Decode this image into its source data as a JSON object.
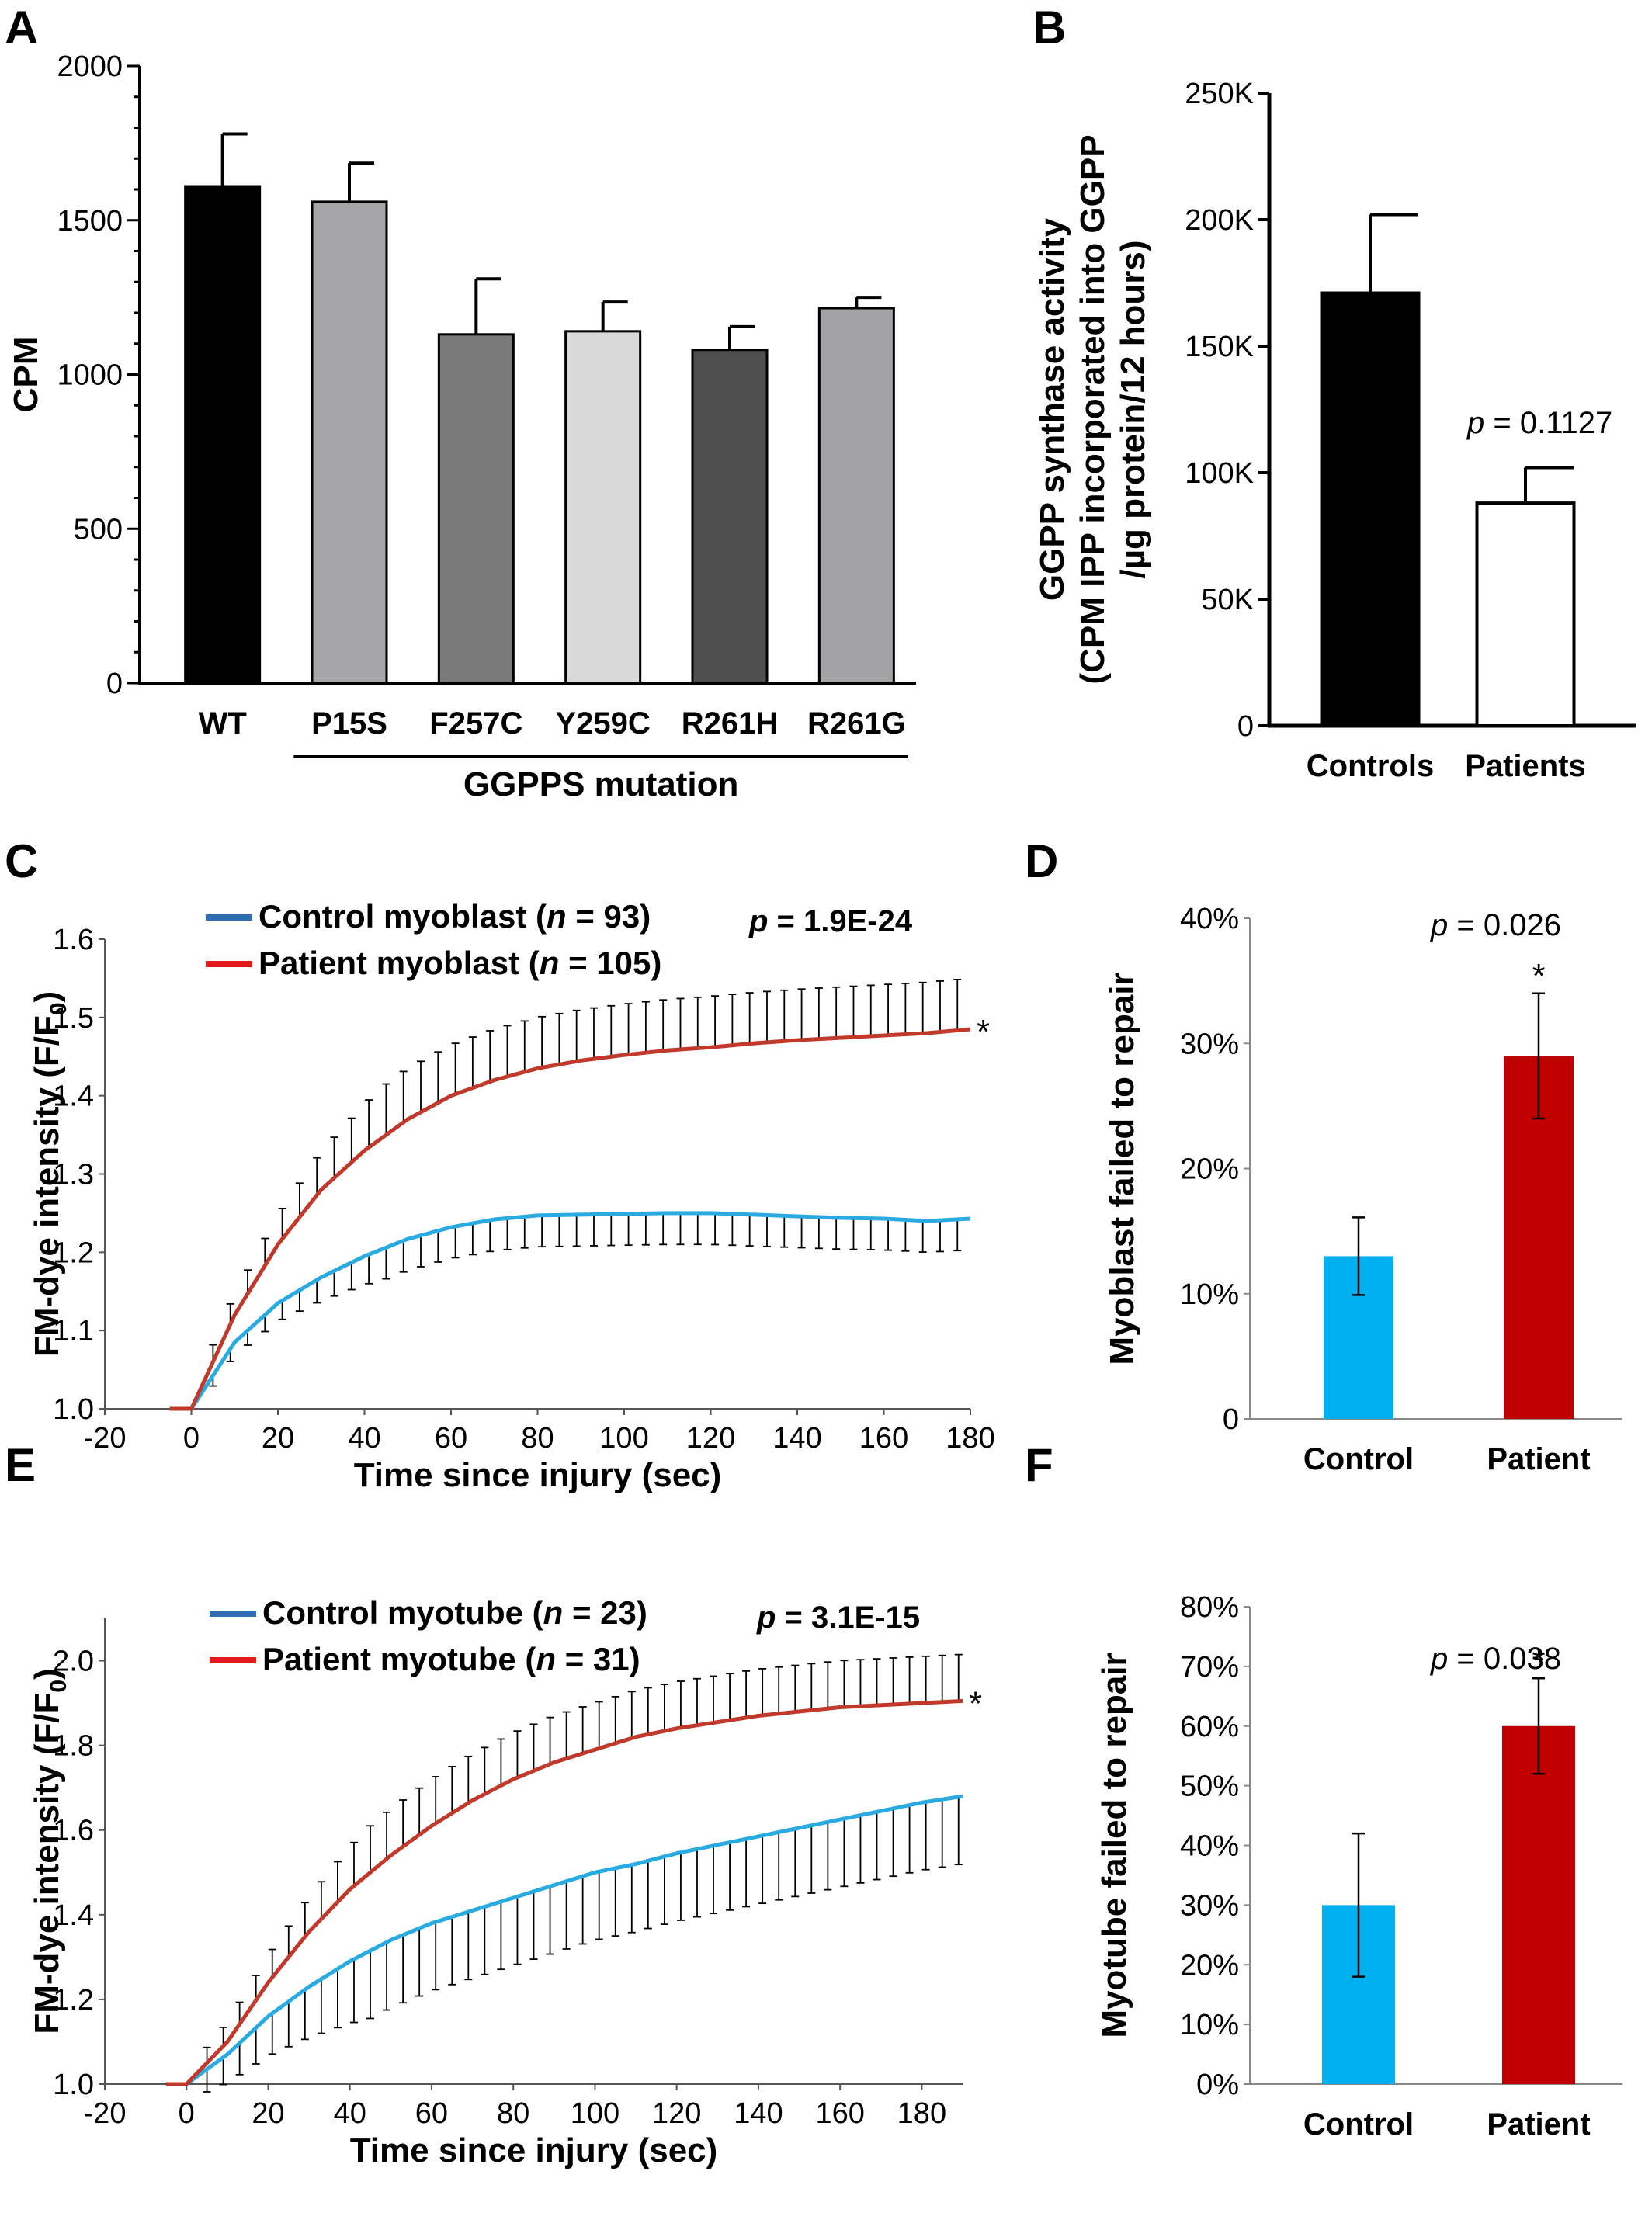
{
  "chart_data": [
    {
      "panel": "A",
      "type": "bar",
      "ylabel": "CPM",
      "xlabel": "GGPPS mutation",
      "ylim": [
        0,
        2000
      ],
      "yticks": [
        0,
        500,
        1000,
        1500,
        2000
      ],
      "categories": [
        "WT",
        "P15S",
        "F257C",
        "Y259C",
        "R261H",
        "R261G"
      ],
      "values": [
        1610,
        1560,
        1130,
        1140,
        1080,
        1215
      ],
      "errors": [
        170,
        125,
        180,
        95,
        75,
        35
      ],
      "colors": [
        "#000000",
        "#a6a6a8",
        "#7a7a7a",
        "#d9d9d9",
        "#4f4f4f",
        "#a3a3a6"
      ]
    },
    {
      "panel": "B",
      "type": "bar",
      "ylabel_lines": [
        "GGPP synthase activity",
        "(CPM IPP incorporated into GGPP",
        "/µg protein/12 hours)"
      ],
      "ylim": [
        0,
        250000
      ],
      "yticks": [
        0,
        50000,
        100000,
        150000,
        200000,
        250000
      ],
      "ytick_labels": [
        "0",
        "50K",
        "100K",
        "150K",
        "200K",
        "250K"
      ],
      "categories": [
        "Controls",
        "Patients"
      ],
      "values": [
        171000,
        88000
      ],
      "errors": [
        31000,
        14000
      ],
      "colors": [
        "#000000",
        "#ffffff"
      ],
      "annotation": {
        "italic": "p",
        "text": " = 0.1127"
      }
    },
    {
      "panel": "C",
      "type": "line",
      "xlabel": "Time since injury (sec)",
      "ylabel": "FM-dye intensity (F/F",
      "ylabel_sub": "0",
      "ylabel_end": ")",
      "xlim": [
        -20,
        180
      ],
      "ylim": [
        1.0,
        1.6
      ],
      "xticks": [
        -20,
        0,
        20,
        40,
        60,
        80,
        100,
        120,
        140,
        160,
        180
      ],
      "yticks": [
        "1.0",
        "1.1",
        "1.2",
        "1.3",
        "1.4",
        "1.5",
        "1.6"
      ],
      "series": [
        {
          "name_pre": "Control myoblast (",
          "name_n": "n",
          "name_post": " = 93)",
          "color": "#29abe2",
          "legend_color": "#2e6db4",
          "x": [
            -5,
            0,
            10,
            20,
            30,
            40,
            50,
            60,
            70,
            80,
            90,
            100,
            110,
            120,
            130,
            140,
            150,
            160,
            170,
            180
          ],
          "y": [
            1.0,
            1.0,
            1.085,
            1.135,
            1.168,
            1.195,
            1.217,
            1.232,
            1.242,
            1.247,
            1.248,
            1.249,
            1.25,
            1.25,
            1.248,
            1.246,
            1.244,
            1.243,
            1.24,
            1.243
          ],
          "err": 0.04
        },
        {
          "name_pre": "Patient myoblast (",
          "name_n": "n",
          "name_post": " = 105)",
          "color": "#c0392b",
          "legend_color": "#e31a1c",
          "x": [
            -5,
            0,
            10,
            20,
            30,
            40,
            50,
            60,
            70,
            80,
            90,
            100,
            110,
            120,
            130,
            140,
            150,
            160,
            170,
            180
          ],
          "y": [
            1.0,
            1.0,
            1.12,
            1.21,
            1.28,
            1.33,
            1.37,
            1.4,
            1.42,
            1.435,
            1.445,
            1.452,
            1.458,
            1.462,
            1.467,
            1.471,
            1.474,
            1.477,
            1.48,
            1.485
          ],
          "err": 0.065
        }
      ],
      "annotation": {
        "text": "p = 1.9E-24"
      },
      "marker": "*"
    },
    {
      "panel": "D",
      "type": "bar",
      "ylabel": "Myoblast failed to repair",
      "ylim": [
        0,
        0.4
      ],
      "yticks": [
        0,
        0.1,
        0.2,
        0.3,
        0.4
      ],
      "ytick_labels": [
        "0",
        "10%",
        "20%",
        "30%",
        "40%"
      ],
      "categories": [
        "Control",
        "Patient"
      ],
      "values": [
        0.13,
        0.29
      ],
      "errors": [
        0.031,
        0.05
      ],
      "colors": [
        "#00b0f0",
        "#c00000"
      ],
      "annotation": {
        "italic": "p",
        "text": " = 0.026"
      },
      "marker": "*"
    },
    {
      "panel": "E",
      "type": "line",
      "xlabel": "Time since injury (sec)",
      "ylabel": "FM-dye intensity (F/F",
      "ylabel_sub": "0",
      "ylabel_end": ")",
      "xlim": [
        -20,
        190
      ],
      "ylim": [
        1.0,
        2.1
      ],
      "xticks": [
        -20,
        0,
        20,
        40,
        60,
        80,
        100,
        120,
        140,
        160,
        180
      ],
      "yticks": [
        "1.0",
        "1.2",
        "1.4",
        "1.6",
        "1.8",
        "2.0"
      ],
      "series": [
        {
          "name_pre": "Control myotube (",
          "name_n": "n",
          "name_post": " = 23)",
          "color": "#29abe2",
          "legend_color": "#2e6db4",
          "x": [
            -5,
            0,
            10,
            20,
            30,
            40,
            50,
            60,
            70,
            80,
            90,
            100,
            110,
            120,
            130,
            140,
            150,
            160,
            170,
            180,
            190
          ],
          "y": [
            1.0,
            1.0,
            1.07,
            1.16,
            1.23,
            1.29,
            1.34,
            1.38,
            1.41,
            1.44,
            1.47,
            1.5,
            1.52,
            1.545,
            1.565,
            1.585,
            1.605,
            1.625,
            1.645,
            1.665,
            1.68
          ],
          "err": 0.16
        },
        {
          "name_pre": "Patient myotube (",
          "name_n": "n",
          "name_post": " = 31)",
          "color": "#c0392b",
          "legend_color": "#e31a1c",
          "x": [
            -5,
            0,
            10,
            20,
            30,
            40,
            50,
            60,
            70,
            80,
            90,
            100,
            110,
            120,
            130,
            140,
            150,
            160,
            170,
            180,
            190
          ],
          "y": [
            1.0,
            1.0,
            1.1,
            1.24,
            1.36,
            1.46,
            1.54,
            1.61,
            1.67,
            1.72,
            1.76,
            1.79,
            1.82,
            1.84,
            1.855,
            1.87,
            1.88,
            1.89,
            1.895,
            1.9,
            1.905
          ],
          "err": 0.11
        }
      ],
      "annotation": {
        "text": "p = 3.1E-15"
      },
      "marker": "*"
    },
    {
      "panel": "F",
      "type": "bar",
      "ylabel": "Myotube failed to repair",
      "ylim": [
        0,
        0.8
      ],
      "yticks": [
        0,
        0.1,
        0.2,
        0.3,
        0.4,
        0.5,
        0.6,
        0.7,
        0.8
      ],
      "ytick_labels": [
        "0%",
        "10%",
        "20%",
        "30%",
        "40%",
        "50%",
        "60%",
        "70%",
        "80%"
      ],
      "categories": [
        "Control",
        "Patient"
      ],
      "values": [
        0.3,
        0.6
      ],
      "errors": [
        0.12,
        0.08
      ],
      "colors": [
        "#00b0f0",
        "#c00000"
      ],
      "annotation": {
        "italic": "p",
        "text": " = 0.038"
      },
      "marker": "*"
    }
  ]
}
